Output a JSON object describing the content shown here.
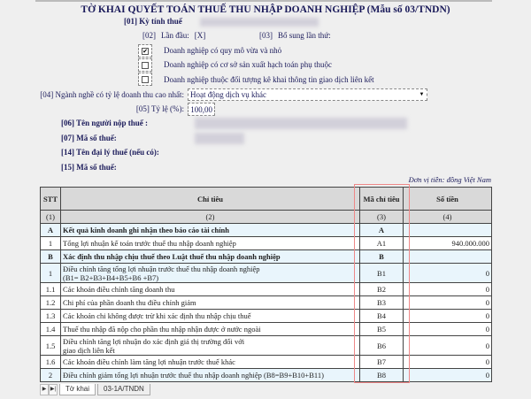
{
  "title": "TỜ KHAI QUYẾT TOÁN THUẾ THU NHẬP DOANH NGHIỆP (Mẫu số 03/TNDN)",
  "f01": "[01] Kỳ tính thuế",
  "f02": "[02]",
  "f02_label": "Lần đầu:",
  "f02_value": "[X]",
  "f03": "[03]",
  "f03_label": "Bổ sung lần thứ:",
  "checkboxes": [
    {
      "label": "Doanh nghiệp có quy mô vừa và nhỏ",
      "checked": true
    },
    {
      "label": "Doanh nghiệp có cơ sở sản xuất hạch toán phụ thuộc",
      "checked": false
    },
    {
      "label": "Doanh nghiệp thuộc đối tượng kê khai thông tin giao dịch liên kết",
      "checked": false
    }
  ],
  "check_mark": "✔",
  "f04_label": "[04] Ngành nghề có tỷ lệ doanh thu cao nhất:",
  "f04_value": "Hoạt động dịch vụ khác",
  "f05_label": "[05] Tỷ lệ (%):",
  "f05_value": "100,00",
  "f06_label": "[06] Tên người nộp thuế :",
  "f07_label": "[07] Mã số thuế:",
  "f14_label": "[14] Tên đại lý thuế (nếu có):",
  "f15_label": "[15] Mã số thuế:",
  "unit": "Đơn vị tiền: đồng Việt Nam",
  "table": {
    "headers": [
      "STT",
      "Chỉ tiêu",
      "Mã chỉ tiêu",
      "Số tiền"
    ],
    "numbers": [
      "(1)",
      "(2)",
      "(3)",
      "(4)"
    ],
    "rows": [
      {
        "stt": "A",
        "label": "Kết quả kinh doanh ghi nhận theo báo cáo tài chính",
        "code": "A",
        "amount": "",
        "section": true
      },
      {
        "stt": "1",
        "label": "Tổng lợi nhuận kế toán trước thuế thu nhập doanh nghiệp",
        "code": "A1",
        "amount": "940.000.000"
      },
      {
        "stt": "B",
        "label": "Xác định thu nhập chịu thuế theo Luật thuế thu nhập doanh nghiệp",
        "code": "B",
        "amount": "",
        "section": true
      },
      {
        "stt": "1",
        "label": "Điều chỉnh tăng tổng lợi nhuận trước thuế thu nhập doanh nghiệp",
        "label2": "(B1= B2+B3+B4+B5+B6 +B7)",
        "code": "B1",
        "amount": "0",
        "hl": true
      },
      {
        "stt": "1.1",
        "label": "Các khoản điều chỉnh tăng doanh thu",
        "code": "B2",
        "amount": "0"
      },
      {
        "stt": "1.2",
        "label": "Chi phí của phần doanh thu điều chỉnh giảm",
        "code": "B3",
        "amount": "0"
      },
      {
        "stt": "1.3",
        "label": "Các khoản chi không được trừ khi xác định thu nhập chịu thuế",
        "code": "B4",
        "amount": "0"
      },
      {
        "stt": "1.4",
        "label": "Thuế thu nhập đã nộp cho phần thu nhập nhận được ở nước ngoài",
        "code": "B5",
        "amount": "0"
      },
      {
        "stt": "1.5",
        "label": "Điều chỉnh tăng lợi nhuận do xác định giá thị trường đối với",
        "label2": "giao dịch liên kết",
        "code": "B6",
        "amount": "0"
      },
      {
        "stt": "1.6",
        "label": "Các khoản điều chỉnh làm tăng lợi nhuận trước thuế khác",
        "code": "B7",
        "amount": "0"
      },
      {
        "stt": "2",
        "label": "Điều chỉnh giảm tổng lợi nhuận trước thuế thu nhập doanh nghiệp (B8=B9+B10+B11)",
        "code": "B8",
        "amount": "0",
        "hl": true
      }
    ]
  },
  "tabs": [
    "Tờ khai",
    "03-1A/TNDN"
  ]
}
